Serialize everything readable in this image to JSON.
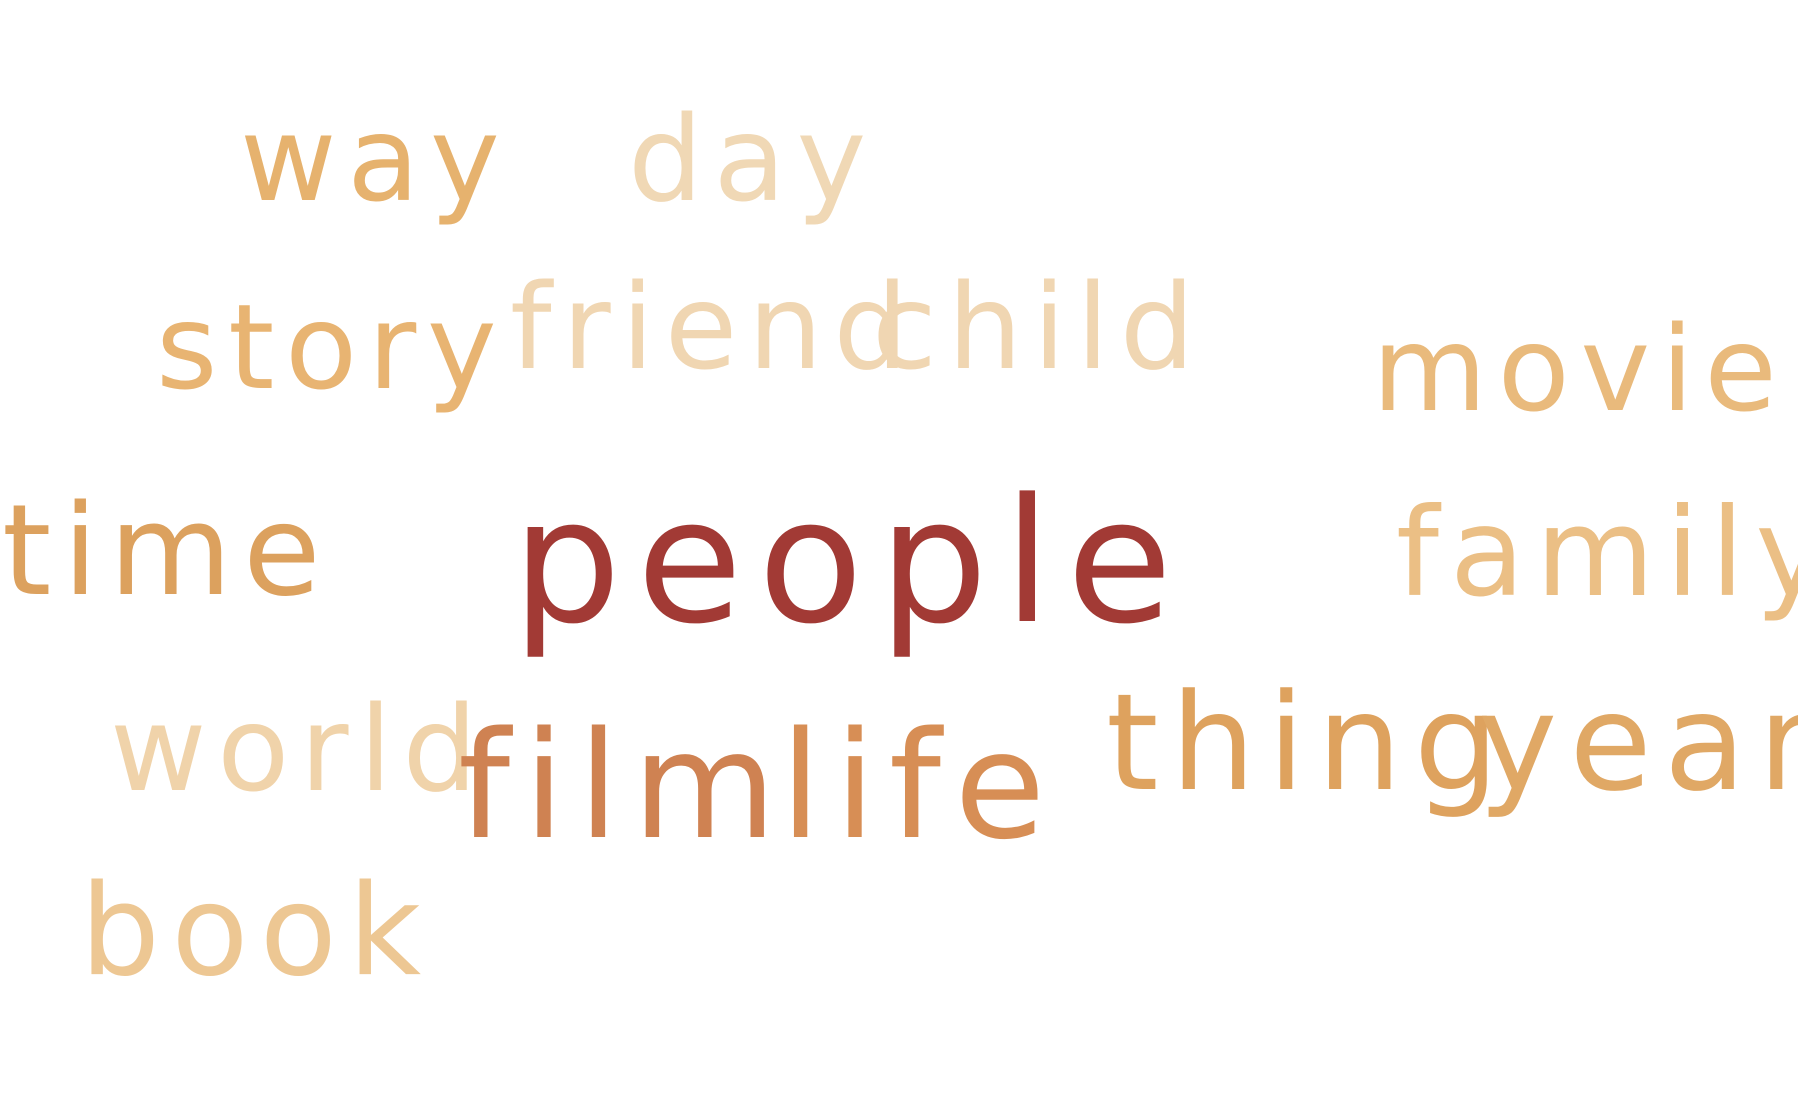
{
  "words": [
    {
      "text": "way",
      "color": "#e6b26e"
    },
    {
      "text": "day",
      "color": "#f0d8b5"
    },
    {
      "text": "story",
      "color": "#e8b472"
    },
    {
      "text": "friend",
      "color": "#f0d6b2"
    },
    {
      "text": "child",
      "color": "#f0d6b2"
    },
    {
      "text": "movie",
      "color": "#e9ba7c"
    },
    {
      "text": "time",
      "color": "#dca15e"
    },
    {
      "text": "people",
      "color": "#a23a35"
    },
    {
      "text": "family",
      "color": "#ebbf85"
    },
    {
      "text": "world",
      "color": "#f0d3aa"
    },
    {
      "text": "film",
      "color": "#cf8252"
    },
    {
      "text": "life",
      "color": "#d78e55"
    },
    {
      "text": "thing",
      "color": "#dea25e"
    },
    {
      "text": "year",
      "color": "#e0a865"
    },
    {
      "text": "book",
      "color": "#edc793"
    }
  ]
}
